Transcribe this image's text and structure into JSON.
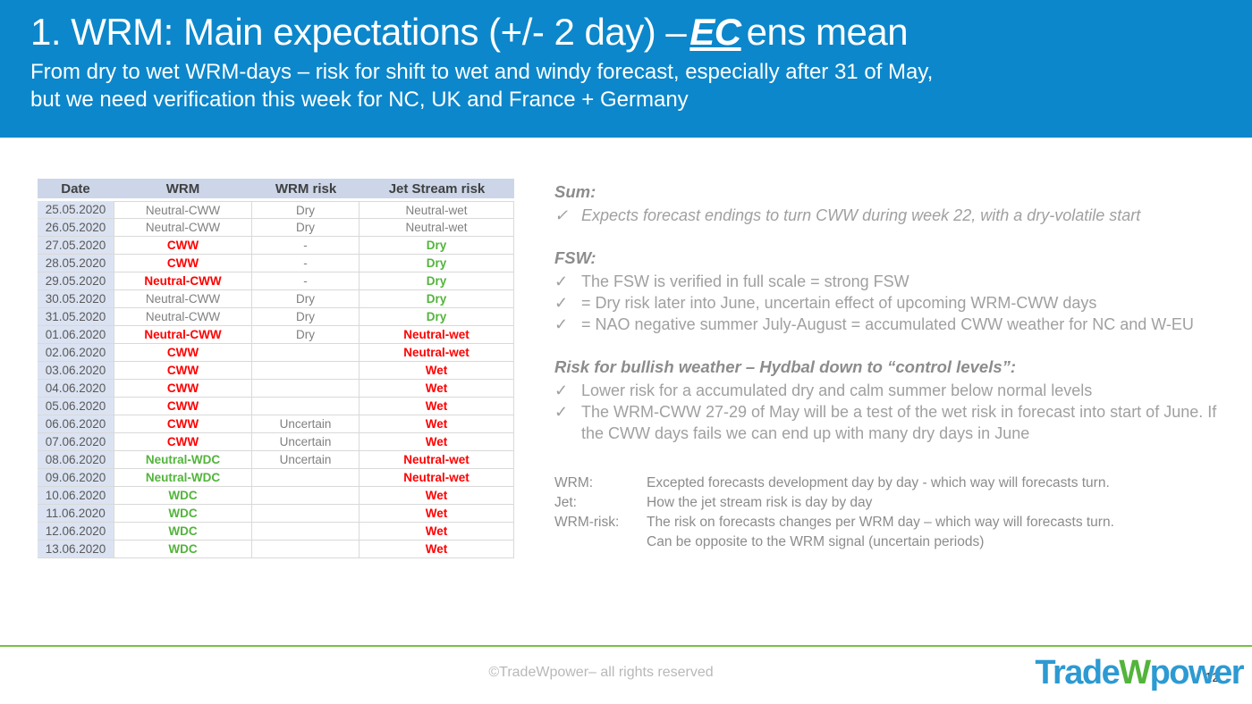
{
  "colors": {
    "header_blue": "#0c87cb",
    "table_header_bg": "#ccd6e8",
    "date_column_bg": "#dbe3f2",
    "red": "#ff0000",
    "green": "#53b43c",
    "footer_line_green": "#76c143",
    "logo_blue": "#2d9ad2",
    "gray_text": "#808080"
  },
  "header": {
    "title_prefix": "1. WRM: Main expectations (+/- 2 day) –",
    "title_emphasis": "EC",
    "title_suffix": "ens mean",
    "subtitle_line1": "From dry to wet WRM-days – risk for shift to wet and windy forecast, especially after 31 of May,",
    "subtitle_line2": "but we need verification this week for NC, UK and France + Germany"
  },
  "table": {
    "headers": [
      "Date",
      "WRM",
      "WRM risk",
      "Jet Stream risk"
    ],
    "rows": [
      {
        "date": "25.05.2020",
        "wrm": "Neutral-CWW",
        "wrm_color": "gray",
        "wrm_risk": "Dry",
        "wrm_risk_color": "gray",
        "jet_risk": "Neutral-wet",
        "jet_risk_color": "gray"
      },
      {
        "date": "26.05.2020",
        "wrm": "Neutral-CWW",
        "wrm_color": "gray",
        "wrm_risk": "Dry",
        "wrm_risk_color": "gray",
        "jet_risk": "Neutral-wet",
        "jet_risk_color": "gray"
      },
      {
        "date": "27.05.2020",
        "wrm": "CWW",
        "wrm_color": "red",
        "wrm_risk": "-",
        "wrm_risk_color": "gray",
        "jet_risk": "Dry",
        "jet_risk_color": "green"
      },
      {
        "date": "28.05.2020",
        "wrm": "CWW",
        "wrm_color": "red",
        "wrm_risk": "-",
        "wrm_risk_color": "gray",
        "jet_risk": "Dry",
        "jet_risk_color": "green"
      },
      {
        "date": "29.05.2020",
        "wrm": "Neutral-CWW",
        "wrm_color": "red",
        "wrm_risk": "-",
        "wrm_risk_color": "gray",
        "jet_risk": "Dry",
        "jet_risk_color": "green"
      },
      {
        "date": "30.05.2020",
        "wrm": "Neutral-CWW",
        "wrm_color": "gray",
        "wrm_risk": "Dry",
        "wrm_risk_color": "gray",
        "jet_risk": "Dry",
        "jet_risk_color": "green"
      },
      {
        "date": "31.05.2020",
        "wrm": "Neutral-CWW",
        "wrm_color": "gray",
        "wrm_risk": "Dry",
        "wrm_risk_color": "gray",
        "jet_risk": "Dry",
        "jet_risk_color": "green"
      },
      {
        "date": "01.06.2020",
        "wrm": "Neutral-CWW",
        "wrm_color": "red",
        "wrm_risk": "Dry",
        "wrm_risk_color": "gray",
        "jet_risk": "Neutral-wet",
        "jet_risk_color": "red"
      },
      {
        "date": "02.06.2020",
        "wrm": "CWW",
        "wrm_color": "red",
        "wrm_risk": "",
        "wrm_risk_color": "gray",
        "jet_risk": "Neutral-wet",
        "jet_risk_color": "red"
      },
      {
        "date": "03.06.2020",
        "wrm": "CWW",
        "wrm_color": "red",
        "wrm_risk": "",
        "wrm_risk_color": "gray",
        "jet_risk": "Wet",
        "jet_risk_color": "red"
      },
      {
        "date": "04.06.2020",
        "wrm": "CWW",
        "wrm_color": "red",
        "wrm_risk": "",
        "wrm_risk_color": "gray",
        "jet_risk": "Wet",
        "jet_risk_color": "red"
      },
      {
        "date": "05.06.2020",
        "wrm": "CWW",
        "wrm_color": "red",
        "wrm_risk": "",
        "wrm_risk_color": "gray",
        "jet_risk": "Wet",
        "jet_risk_color": "red"
      },
      {
        "date": "06.06.2020",
        "wrm": "CWW",
        "wrm_color": "red",
        "wrm_risk": "Uncertain",
        "wrm_risk_color": "gray",
        "jet_risk": "Wet",
        "jet_risk_color": "red"
      },
      {
        "date": "07.06.2020",
        "wrm": "CWW",
        "wrm_color": "red",
        "wrm_risk": "Uncertain",
        "wrm_risk_color": "gray",
        "jet_risk": "Wet",
        "jet_risk_color": "red"
      },
      {
        "date": "08.06.2020",
        "wrm": "Neutral-WDC",
        "wrm_color": "green",
        "wrm_risk": "Uncertain",
        "wrm_risk_color": "gray",
        "jet_risk": "Neutral-wet",
        "jet_risk_color": "red"
      },
      {
        "date": "09.06.2020",
        "wrm": "Neutral-WDC",
        "wrm_color": "green",
        "wrm_risk": "",
        "wrm_risk_color": "gray",
        "jet_risk": "Neutral-wet",
        "jet_risk_color": "red"
      },
      {
        "date": "10.06.2020",
        "wrm": "WDC",
        "wrm_color": "green",
        "wrm_risk": "",
        "wrm_risk_color": "gray",
        "jet_risk": "Wet",
        "jet_risk_color": "red"
      },
      {
        "date": "11.06.2020",
        "wrm": "WDC",
        "wrm_color": "green",
        "wrm_risk": "",
        "wrm_risk_color": "gray",
        "jet_risk": "Wet",
        "jet_risk_color": "red"
      },
      {
        "date": "12.06.2020",
        "wrm": "WDC",
        "wrm_color": "green",
        "wrm_risk": "",
        "wrm_risk_color": "gray",
        "jet_risk": "Wet",
        "jet_risk_color": "red"
      },
      {
        "date": "13.06.2020",
        "wrm": "WDC",
        "wrm_color": "green",
        "wrm_risk": "",
        "wrm_risk_color": "gray",
        "jet_risk": "Wet",
        "jet_risk_color": "red"
      }
    ]
  },
  "notes": {
    "check_glyph": "✓",
    "sections": [
      {
        "heading": "Sum:",
        "italic_items": true,
        "items": [
          "Expects forecast endings to turn CWW during week 22, with a dry-volatile start"
        ]
      },
      {
        "heading": "FSW:",
        "italic_items": false,
        "items": [
          "The FSW is verified in full scale = strong FSW",
          "= Dry risk later into June, uncertain effect of upcoming WRM-CWW days",
          "= NAO negative summer July-August = accumulated CWW weather for NC and W-EU"
        ]
      },
      {
        "heading": "Risk for bullish weather – Hydbal down to “control levels”:",
        "italic_items": false,
        "items": [
          "Lower risk for a accumulated dry and calm summer below normal levels",
          "The WRM-CWW 27-29 of May will be a test of the wet risk in forecast into start of June. If the CWW days fails we can end up with many dry days in June"
        ]
      }
    ],
    "definitions": [
      {
        "term": "WRM:",
        "lines": [
          "Excepted forecasts development day by day - which way will forecasts turn."
        ]
      },
      {
        "term": "Jet:",
        "lines": [
          "How the jet stream risk is day by day"
        ]
      },
      {
        "term": "WRM-risk:",
        "lines": [
          "The risk on forecasts changes per WRM day – which way will forecasts turn.",
          "Can be opposite to the WRM signal (uncertain periods)"
        ]
      }
    ]
  },
  "footer": {
    "copyright": "©TradeWpower– all rights reserved",
    "page_number": "12",
    "logo": {
      "part1": "Trade",
      "part2": "W",
      "part3": "power"
    }
  }
}
